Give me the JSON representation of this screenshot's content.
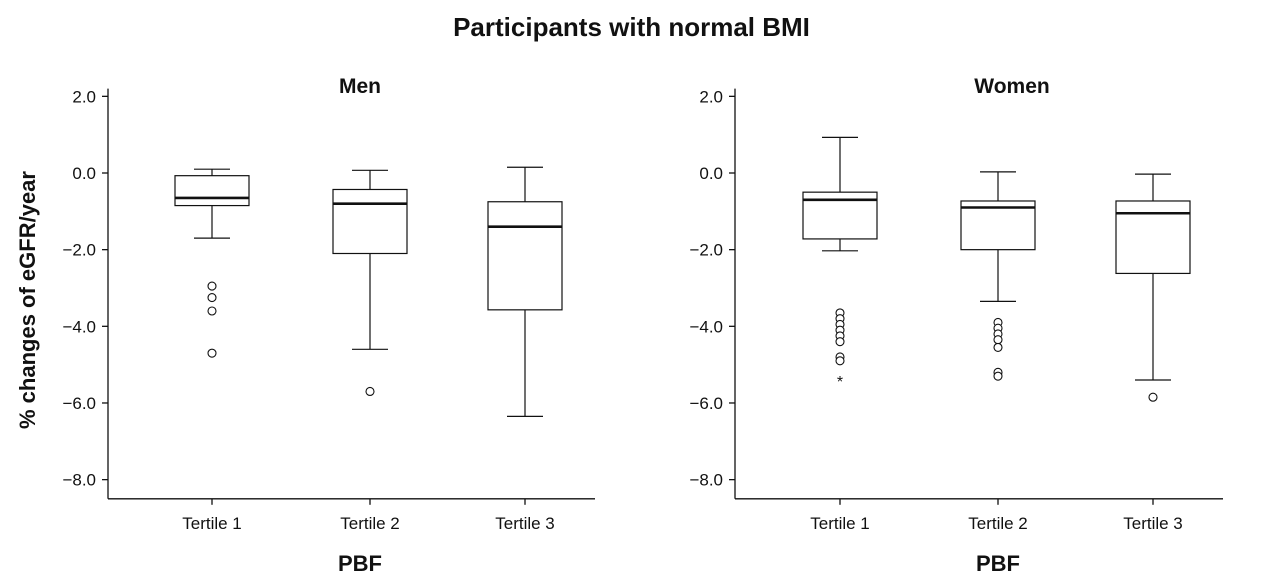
{
  "title": "Participants with normal BMI",
  "ylabel": "% changes of eGFR/year",
  "chart_data": [
    {
      "type": "box",
      "panel_title": "Men",
      "xlabel": "PBF",
      "ylim": [
        -8.5,
        2.2
      ],
      "yticks": [
        "2.0",
        "0.0",
        "−2.0",
        "−4.0",
        "−6.0",
        "−8.0"
      ],
      "ytick_values": [
        2,
        0,
        -2,
        -4,
        -6,
        -8
      ],
      "categories": [
        "Tertile 1",
        "Tertile 2",
        "Tertile 3"
      ],
      "boxes": [
        {
          "whisker_low": -1.7,
          "q1": -0.85,
          "median": -0.65,
          "q3": -0.07,
          "whisker_high": 0.1,
          "outliers": [
            -2.95,
            -3.25,
            -3.6,
            -4.7
          ],
          "extremes": []
        },
        {
          "whisker_low": -4.6,
          "q1": -2.1,
          "median": -0.8,
          "q3": -0.43,
          "whisker_high": 0.07,
          "outliers": [
            -5.7
          ],
          "extremes": []
        },
        {
          "whisker_low": -6.35,
          "q1": -3.57,
          "median": -1.4,
          "q3": -0.75,
          "whisker_high": 0.15,
          "outliers": [],
          "extremes": []
        }
      ]
    },
    {
      "type": "box",
      "panel_title": "Women",
      "xlabel": "PBF",
      "ylim": [
        -8.5,
        2.2
      ],
      "yticks": [
        "2.0",
        "0.0",
        "−2.0",
        "−4.0",
        "−6.0",
        "−8.0"
      ],
      "ytick_values": [
        2,
        0,
        -2,
        -4,
        -6,
        -8
      ],
      "categories": [
        "Tertile 1",
        "Tertile 2",
        "Tertile 3"
      ],
      "boxes": [
        {
          "whisker_low": -2.03,
          "q1": -1.72,
          "median": -0.7,
          "q3": -0.5,
          "whisker_high": 0.93,
          "outliers": [
            -3.65,
            -3.8,
            -3.95,
            -4.1,
            -4.25,
            -4.4,
            -4.8,
            -4.9
          ],
          "extremes": [
            -5.35
          ]
        },
        {
          "whisker_low": -3.35,
          "q1": -2.0,
          "median": -0.9,
          "q3": -0.73,
          "whisker_high": 0.03,
          "outliers": [
            -3.9,
            -4.05,
            -4.2,
            -4.35,
            -4.55,
            -5.2,
            -5.3
          ],
          "extremes": []
        },
        {
          "whisker_low": -5.4,
          "q1": -2.62,
          "median": -1.05,
          "q3": -0.73,
          "whisker_high": -0.03,
          "outliers": [
            -5.85
          ],
          "extremes": []
        }
      ]
    }
  ]
}
